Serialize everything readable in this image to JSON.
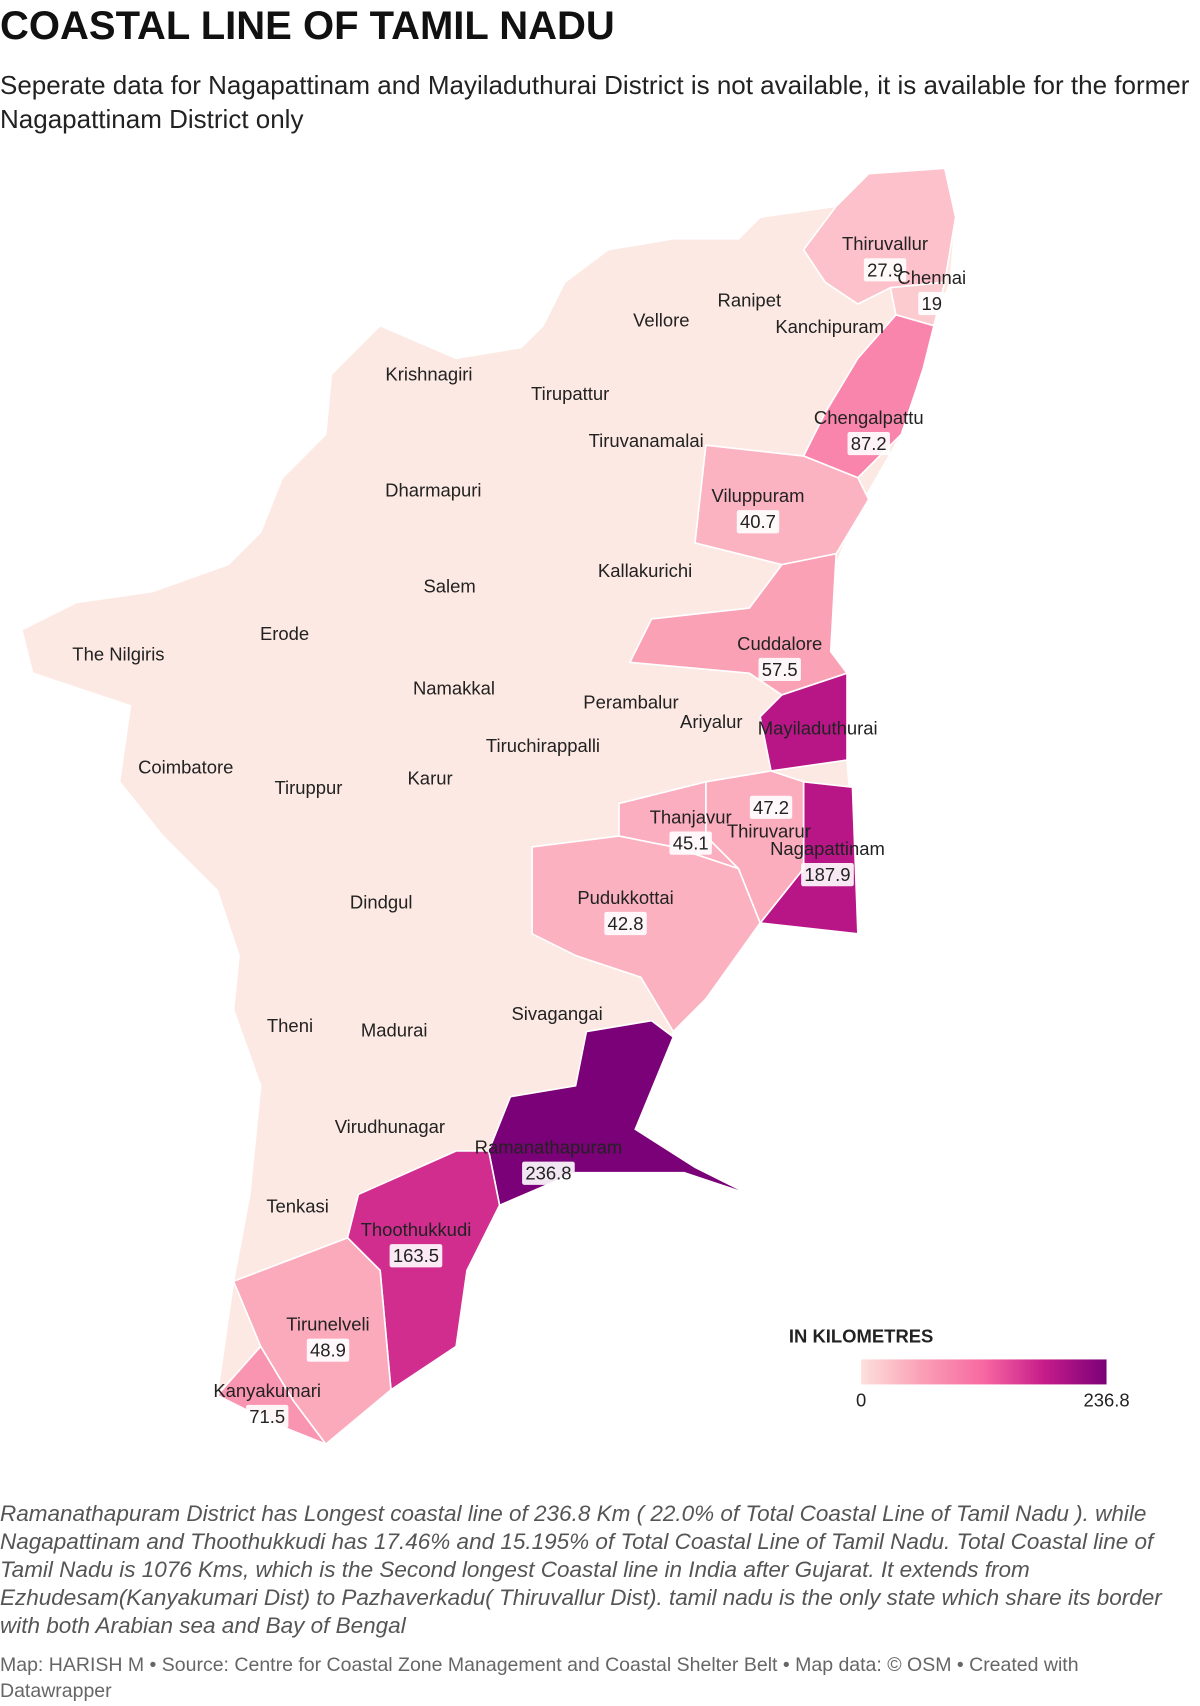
{
  "title": "COASTAL LINE OF TAMIL NADU",
  "subtitle": "Seperate data for Nagapattinam and Mayiladuthurai District is not available, it is available for the former Nagapattinam District only",
  "map": {
    "legend_title": "IN KILOMETRES",
    "scale_min": 0,
    "scale_max": 236.8,
    "colors": [
      "#fde0dd",
      "#fa9fb5",
      "#f768a1",
      "#c51b8a",
      "#7a0177"
    ],
    "no_data_color": "#fde9e3",
    "districts": [
      {
        "name": "Thiruvallur",
        "value": 27.9
      },
      {
        "name": "Chennai",
        "value": 19
      },
      {
        "name": "Chengalpattu",
        "value": 87.2
      },
      {
        "name": "Viluppuram",
        "value": 40.7
      },
      {
        "name": "Cuddalore",
        "value": 57.5
      },
      {
        "name": "Mayiladuthurai"
      },
      {
        "name": "Nagapattinam",
        "value": 187.9
      },
      {
        "name": "Thiruvarur",
        "value": 47.2
      },
      {
        "name": "Thanjavur",
        "value": 45.1
      },
      {
        "name": "Pudukkottai",
        "value": 42.8
      },
      {
        "name": "Ramanathapuram",
        "value": 236.8
      },
      {
        "name": "Thoothukkudi",
        "value": 163.5
      },
      {
        "name": "Tirunelveli",
        "value": 48.9
      },
      {
        "name": "Kanyakumari",
        "value": 71.5
      },
      {
        "name": "Ranipet"
      },
      {
        "name": "Vellore"
      },
      {
        "name": "Kanchipuram"
      },
      {
        "name": "Krishnagiri"
      },
      {
        "name": "Tirupattur"
      },
      {
        "name": "Tiruvanamalai"
      },
      {
        "name": "Dharmapuri"
      },
      {
        "name": "Kallakurichi"
      },
      {
        "name": "Salem"
      },
      {
        "name": "Erode"
      },
      {
        "name": "The Nilgiris"
      },
      {
        "name": "Namakkal"
      },
      {
        "name": "Perambalur"
      },
      {
        "name": "Ariyalur"
      },
      {
        "name": "Tiruchirappalli"
      },
      {
        "name": "Coimbatore"
      },
      {
        "name": "Tiruppur"
      },
      {
        "name": "Karur"
      },
      {
        "name": "Dindgul"
      },
      {
        "name": "Theni"
      },
      {
        "name": "Madurai"
      },
      {
        "name": "Sivagangai"
      },
      {
        "name": "Virudhunagar"
      },
      {
        "name": "Tenkasi"
      }
    ]
  },
  "description": "Ramanathapuram District has Longest coastal line of 236.8 Km ( 22.0% of Total Coastal Line of Tamil Nadu ). while Nagapattinam and Thoothukkudi has 17.46% and 15.195% of Total Coastal Line of Tamil Nadu. Total Coastal line of Tamil Nadu is 1076 Kms, which is the Second longest Coastal line in India after Gujarat. It extends from Ezhudesam(Kanyakumari Dist) to Pazhaverkadu( Thiruvallur Dist). tamil nadu is the only state which share its border with both Arabian sea and Bay of Bengal",
  "footer": "Map: HARISH M • Source: Centre for Coastal Zone Management and Coastal Shelter Belt • Map data: © OSM • Created with Datawrapper"
}
